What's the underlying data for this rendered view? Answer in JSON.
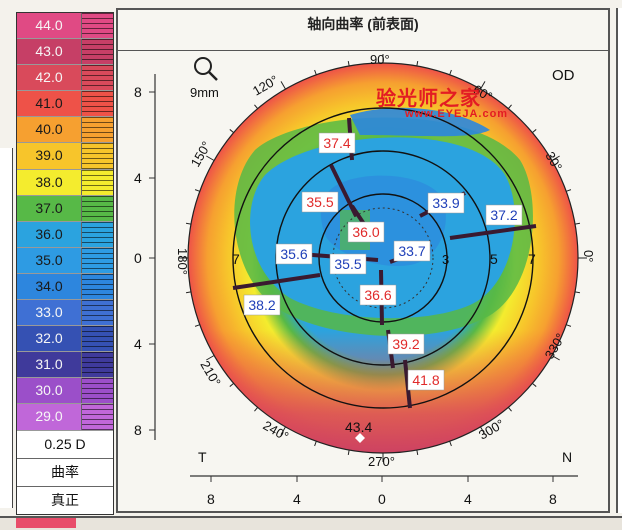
{
  "title": "轴向曲率 (前表面)",
  "eye": "OD",
  "zoom_label": "9mm",
  "watermark": {
    "chinese": "验光师之家",
    "url": "www.EYEJA.com"
  },
  "legend": {
    "entries": [
      {
        "value": "44.0",
        "color": "#e04a84",
        "light": true
      },
      {
        "value": "43.0",
        "color": "#c63f66",
        "light": true
      },
      {
        "value": "42.0",
        "color": "#d94a5b",
        "light": true
      },
      {
        "value": "41.0",
        "color": "#ee5248",
        "light": false
      },
      {
        "value": "40.0",
        "color": "#f6a030",
        "light": false
      },
      {
        "value": "39.0",
        "color": "#f7c52b",
        "light": false
      },
      {
        "value": "38.0",
        "color": "#f4ec2e",
        "light": false
      },
      {
        "value": "37.0",
        "color": "#57b947",
        "light": false
      },
      {
        "value": "36.0",
        "color": "#2ba3df",
        "light": false
      },
      {
        "value": "35.0",
        "color": "#2e9be3",
        "light": false
      },
      {
        "value": "34.0",
        "color": "#2d86de",
        "light": false
      },
      {
        "value": "33.0",
        "color": "#3f70d4",
        "light": true
      },
      {
        "value": "32.0",
        "color": "#3551b3",
        "light": true
      },
      {
        "value": "31.0",
        "color": "#3f3a9b",
        "light": true
      },
      {
        "value": "30.0",
        "color": "#9b4fc9",
        "light": true
      },
      {
        "value": "29.0",
        "color": "#c067d9",
        "light": true
      }
    ],
    "step_label": "0.25 D",
    "mode_label": "曲率",
    "scale_label": "真正"
  },
  "axes": {
    "y_ticks": [
      "8",
      "4",
      "0",
      "4",
      "8"
    ],
    "x_ticks": [
      "8",
      "4",
      "0",
      "4",
      "8"
    ],
    "temporal_label": "T",
    "nasal_label": "N"
  },
  "angles": {
    "a90": "90°",
    "a60": "60°",
    "a30": "30°",
    "a0": "0°",
    "a330": "330°",
    "a300": "300°",
    "a270": "270°",
    "a240": "240°",
    "a210": "210°",
    "a180": "180°",
    "a150": "150°",
    "a120": "120°"
  },
  "ring_labels": {
    "r7_left": "7",
    "r5_left": "5",
    "r3_left": "3",
    "r3_right": "3",
    "r5_right": "5",
    "r7_right": "7"
  },
  "readings": [
    {
      "value": "37.4",
      "color": "#e02a2a"
    },
    {
      "value": "35.5",
      "color": "#e02a2a"
    },
    {
      "value": "36.0",
      "color": "#e02a2a"
    },
    {
      "value": "33.9",
      "color": "#1f3fb8"
    },
    {
      "value": "37.2",
      "color": "#1f3fb8"
    },
    {
      "value": "35.6",
      "color": "#1f3fb8"
    },
    {
      "value": "33.7",
      "color": "#1f3fb8"
    },
    {
      "value": "35.5",
      "color": "#1f3fb8"
    },
    {
      "value": "36.6",
      "color": "#e02a2a"
    },
    {
      "value": "38.2",
      "color": "#1f3fb8"
    },
    {
      "value": "39.2",
      "color": "#e02a2a"
    },
    {
      "value": "41.8",
      "color": "#e02a2a"
    }
  ],
  "peak_marker_value": "43.4"
}
